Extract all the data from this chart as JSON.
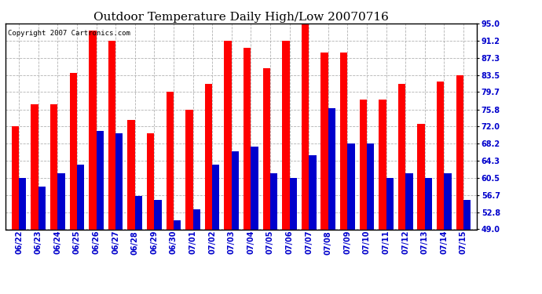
{
  "title": "Outdoor Temperature Daily High/Low 20070716",
  "copyright": "Copyright 2007 Cartronics.com",
  "dates": [
    "06/22",
    "06/23",
    "06/24",
    "06/25",
    "06/26",
    "06/27",
    "06/28",
    "06/29",
    "06/30",
    "07/01",
    "07/02",
    "07/03",
    "07/04",
    "07/05",
    "07/06",
    "07/07",
    "07/08",
    "07/09",
    "07/10",
    "07/11",
    "07/12",
    "07/13",
    "07/14",
    "07/15"
  ],
  "highs": [
    72.0,
    77.0,
    77.0,
    84.0,
    93.5,
    91.2,
    73.5,
    70.5,
    79.7,
    75.8,
    81.5,
    91.2,
    89.5,
    85.0,
    91.2,
    95.0,
    88.5,
    88.5,
    78.0,
    78.0,
    81.5,
    72.5,
    82.0,
    83.5
  ],
  "lows": [
    60.5,
    58.5,
    61.5,
    63.5,
    71.0,
    70.5,
    56.5,
    55.5,
    51.0,
    53.5,
    63.5,
    66.5,
    67.5,
    61.5,
    60.5,
    65.5,
    76.0,
    68.2,
    68.2,
    60.5,
    61.5,
    60.5,
    61.5,
    55.5
  ],
  "high_color": "#ff0000",
  "low_color": "#0000cc",
  "bg_color": "#ffffff",
  "grid_color": "#aaaaaa",
  "yticks": [
    49.0,
    52.8,
    56.7,
    60.5,
    64.3,
    68.2,
    72.0,
    75.8,
    79.7,
    83.5,
    87.3,
    91.2,
    95.0
  ],
  "ymin": 49.0,
  "ymax": 95.0,
  "title_fontsize": 11,
  "tick_fontsize": 7,
  "bar_width": 0.38
}
